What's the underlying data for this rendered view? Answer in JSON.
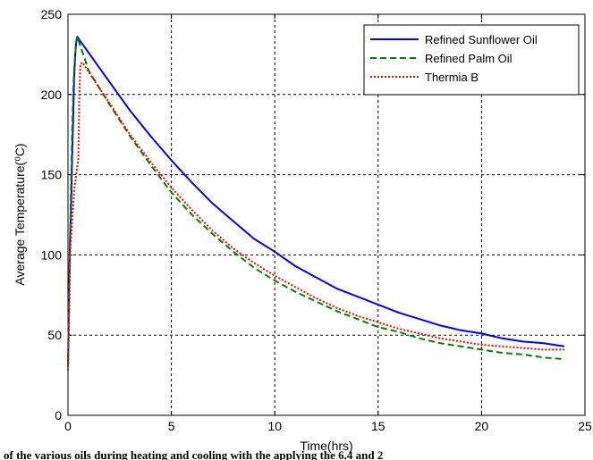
{
  "chart_data": {
    "type": "line",
    "title": "",
    "xlabel": "Time(hrs)",
    "ylabel": "Average Temperature(⁰C)",
    "xlim": [
      0,
      25
    ],
    "ylim": [
      0,
      250
    ],
    "xticks": [
      0,
      5,
      10,
      15,
      20,
      25
    ],
    "yticks": [
      0,
      50,
      100,
      150,
      200,
      250
    ],
    "xtick_labels": [
      "0",
      "5",
      "10",
      "15",
      "20",
      "25"
    ],
    "ytick_labels": [
      "0",
      "50",
      "100",
      "150",
      "200",
      "250"
    ],
    "grid": true,
    "grid_style": "dashed",
    "legend_position": "top-right",
    "series": [
      {
        "name": "Refined Sunflower Oil",
        "color": "#0000ff",
        "dash": "solid",
        "x": [
          0,
          0.05,
          0.1,
          0.15,
          0.2,
          0.25,
          0.3,
          0.35,
          0.4,
          0.45,
          0.5,
          1,
          2,
          3,
          4,
          5,
          6,
          7,
          8,
          9,
          10,
          11,
          12,
          13,
          14,
          15,
          16,
          17,
          18,
          19,
          20,
          21,
          22,
          23,
          24
        ],
        "y": [
          30,
          75,
          110,
          130,
          160,
          185,
          210,
          225,
          233,
          236,
          235,
          226,
          208,
          190,
          174,
          159,
          145,
          132,
          121,
          110,
          102,
          93,
          86,
          79,
          74,
          69,
          64,
          60,
          56,
          53,
          51,
          48,
          46,
          45,
          43
        ]
      },
      {
        "name": "Refined Palm Oil",
        "color": "#008000",
        "dash": "dashed",
        "x": [
          0,
          0.05,
          0.1,
          0.15,
          0.2,
          0.25,
          0.3,
          0.35,
          0.4,
          0.45,
          0.5,
          1,
          2,
          3,
          4,
          5,
          6,
          7,
          8,
          9,
          10,
          11,
          12,
          13,
          14,
          15,
          16,
          17,
          18,
          19,
          20,
          21,
          22,
          23,
          24
        ],
        "y": [
          30,
          75,
          110,
          145,
          175,
          200,
          215,
          225,
          232,
          236,
          234,
          215,
          194,
          174,
          156,
          139,
          125,
          113,
          102,
          92,
          84,
          77,
          71,
          65,
          60,
          55,
          52,
          48,
          45,
          43,
          41,
          39,
          38,
          36,
          35
        ]
      },
      {
        "name": "Thermia B",
        "color": "#ff0000",
        "dash": "dotted",
        "x": [
          0,
          0.05,
          0.1,
          0.2,
          0.3,
          0.4,
          0.5,
          0.55,
          0.6,
          0.7,
          1,
          2,
          3,
          4,
          5,
          6,
          7,
          8,
          9,
          10,
          11,
          12,
          13,
          14,
          15,
          16,
          17,
          18,
          19,
          20,
          21,
          22,
          23,
          24
        ],
        "y": [
          28,
          60,
          100,
          120,
          140,
          150,
          160,
          200,
          219,
          220,
          214,
          195,
          175,
          158,
          142,
          128,
          115,
          104,
          95,
          87,
          80,
          73,
          67,
          62,
          58,
          54,
          51,
          48,
          46,
          44,
          43,
          42,
          41,
          41
        ]
      }
    ]
  },
  "caption": "of the various oils during heating and cooling with the applying the 6.4 and 2"
}
